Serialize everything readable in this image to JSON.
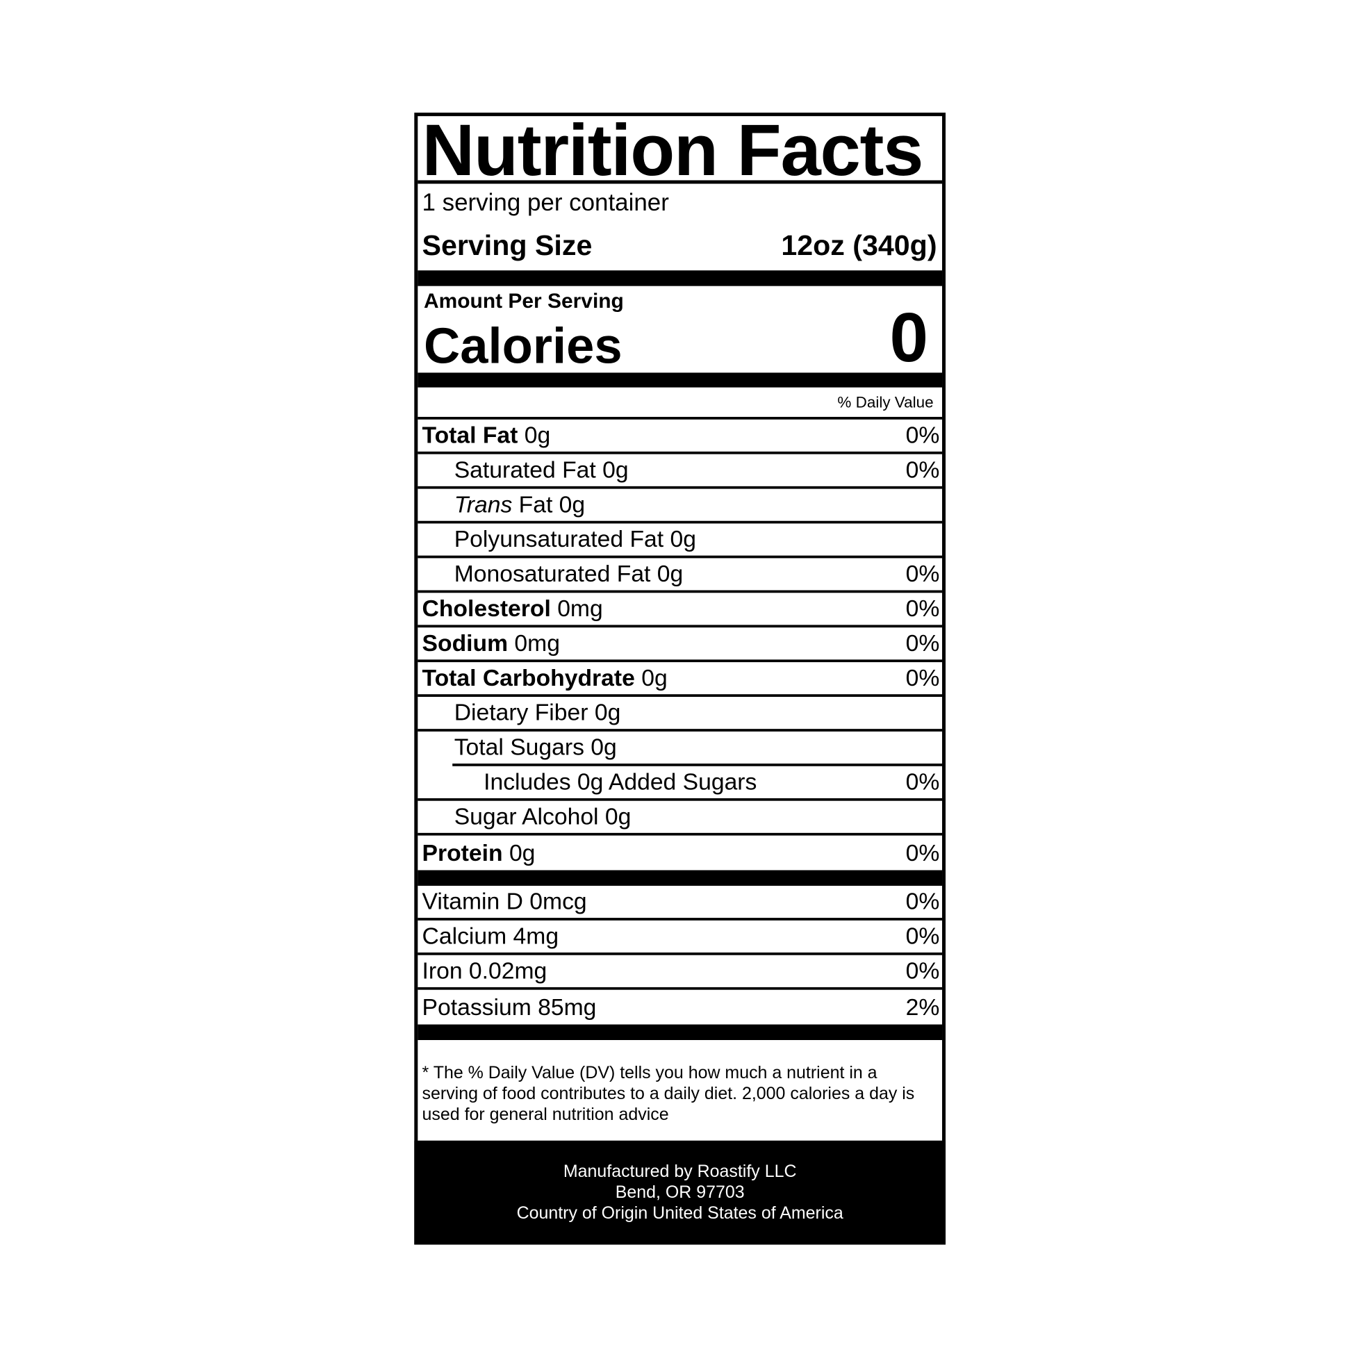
{
  "title": "Nutrition Facts",
  "servings_per_container": "1 serving per container",
  "serving_size_label": "Serving Size",
  "serving_size_value": "12oz (340g)",
  "amount_per_serving": "Amount Per Serving",
  "calories_label": "Calories",
  "calories_value": "0",
  "daily_value_header": "% Daily Value",
  "nutrients": [
    {
      "name": "Total Fat",
      "amount": "0g",
      "dv": "0%"
    },
    {
      "name": "Saturated Fat 0g",
      "dv": "0%"
    },
    {
      "name_italic": "Trans",
      "name": " Fat 0g",
      "dv": ""
    },
    {
      "name": "Polyunsaturated Fat 0g",
      "dv": ""
    },
    {
      "name": "Monosaturated Fat 0g",
      "dv": "0%"
    },
    {
      "name": "Cholesterol",
      "amount": "0mg",
      "dv": "0%"
    },
    {
      "name": "Sodium",
      "amount": "0mg",
      "dv": "0%"
    },
    {
      "name": "Total Carbohydrate",
      "amount": "0g",
      "dv": "0%"
    },
    {
      "name": "Dietary Fiber 0g",
      "dv": ""
    },
    {
      "name": "Total Sugars 0g",
      "dv": ""
    },
    {
      "name": "Includes 0g Added Sugars",
      "dv": "0%"
    },
    {
      "name": "Sugar Alcohol 0g",
      "dv": ""
    },
    {
      "name": "Protein",
      "amount": "0g",
      "dv": "0%"
    }
  ],
  "vitamins": [
    {
      "name": "Vitamin D 0mcg",
      "dv": "0%"
    },
    {
      "name": "Calcium 4mg",
      "dv": "0%"
    },
    {
      "name": "Iron 0.02mg",
      "dv": "0%"
    },
    {
      "name": "Potassium 85mg",
      "dv": "2%"
    }
  ],
  "footnote": "* The % Daily Value (DV) tells you how much a nutrient in a serving of food contributes to a daily diet. 2,000 calories a day is used for general nutrition advice",
  "manufacturer": [
    "Manufactured by Roastify LLC",
    "Bend, OR 97703",
    "Country of Origin United States of America"
  ]
}
